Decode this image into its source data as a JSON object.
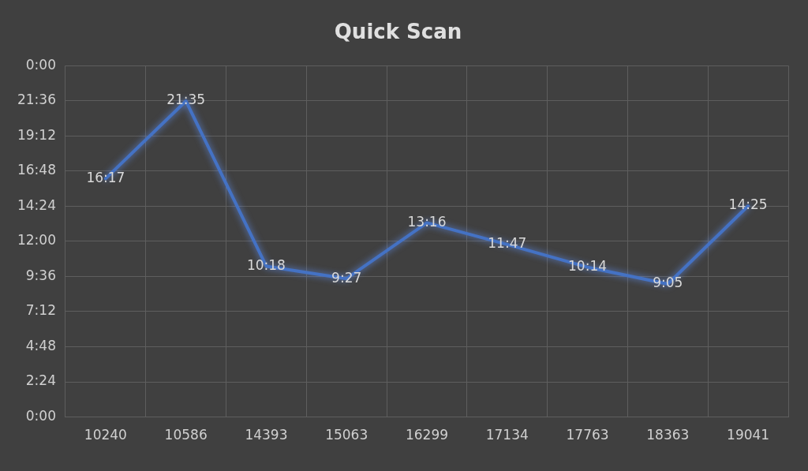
{
  "chart_data": {
    "type": "line",
    "title": "Quick Scan",
    "categories": [
      "10240",
      "10586",
      "14393",
      "15063",
      "16299",
      "17134",
      "17763",
      "18363",
      "19041"
    ],
    "series": [
      {
        "color": "#4472c4",
        "values": [
          16.283,
          21.583,
          10.3,
          9.45,
          13.267,
          11.783,
          10.233,
          9.083,
          14.417
        ],
        "value_labels": [
          "16:17",
          "21:35",
          "10:18",
          "9:27",
          "13:16",
          "11:47",
          "10:14",
          "9:05",
          "14:25"
        ]
      }
    ],
    "ylim": [
      0,
      24
    ],
    "yticks": [
      {
        "value": 0,
        "label": "0:00"
      },
      {
        "value": 2.4,
        "label": "2:24"
      },
      {
        "value": 4.8,
        "label": "4:48"
      },
      {
        "value": 7.2,
        "label": "7:12"
      },
      {
        "value": 9.6,
        "label": "9:36"
      },
      {
        "value": 12,
        "label": "12:00"
      },
      {
        "value": 14.4,
        "label": "14:24"
      },
      {
        "value": 16.8,
        "label": "16:48"
      },
      {
        "value": 19.2,
        "label": "19:12"
      },
      {
        "value": 21.6,
        "label": "21:36"
      },
      {
        "value": 24,
        "label": "0:00"
      }
    ],
    "grid": true,
    "marker": "none",
    "legend": false
  }
}
